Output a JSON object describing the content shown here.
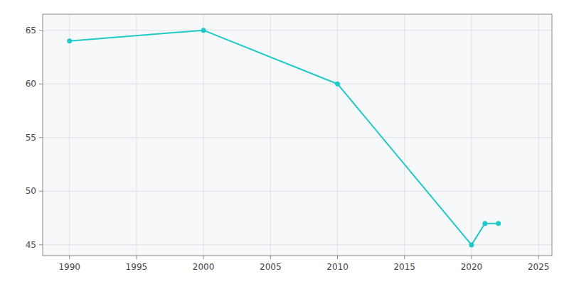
{
  "chart_data": {
    "type": "line",
    "x": [
      1990,
      2000,
      2010,
      2020,
      2021,
      2022
    ],
    "values": [
      64,
      65,
      60,
      45,
      47,
      47
    ],
    "color": "#20C8C8",
    "marker": "circle",
    "xlim": [
      1988,
      2026
    ],
    "ylim": [
      44,
      66.5
    ],
    "xticks": [
      1990,
      1995,
      2000,
      2005,
      2010,
      2015,
      2020,
      2025
    ],
    "yticks": [
      45,
      50,
      55,
      60,
      65
    ],
    "grid": true
  }
}
